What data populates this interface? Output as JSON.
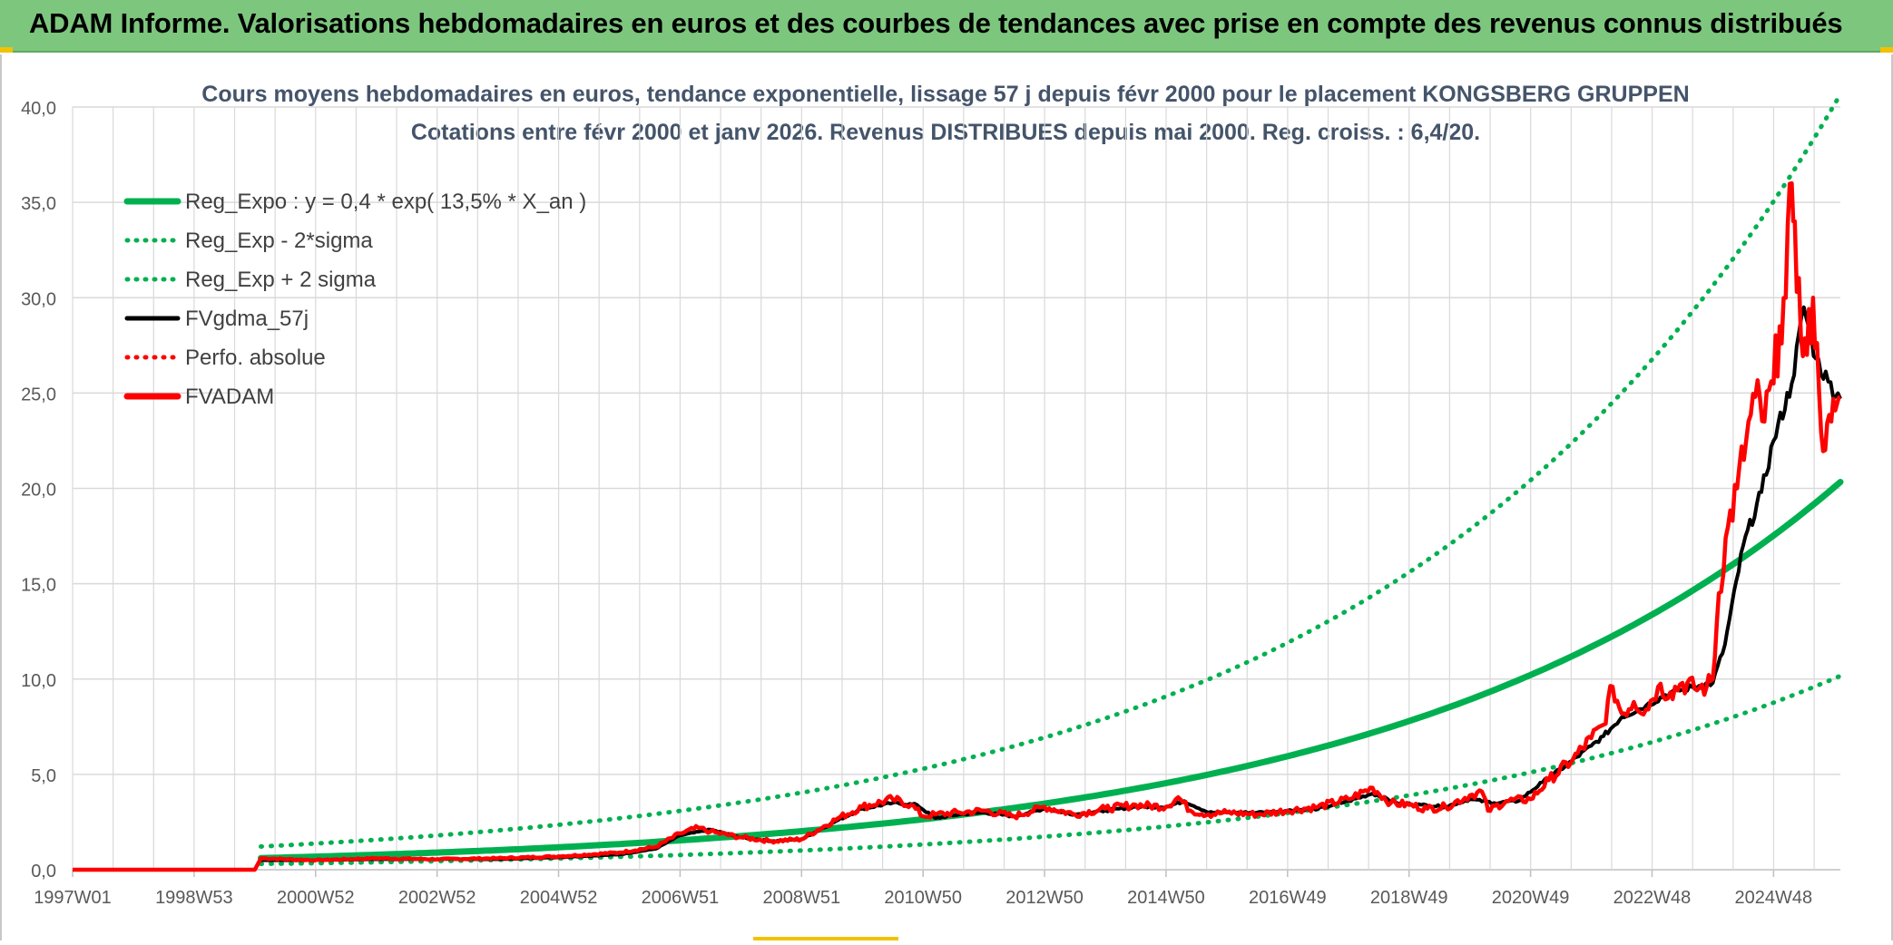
{
  "banner": {
    "title": "ADAM Informe. Valorisations hebdomadaires en euros et des courbes de tendances avec prise en compte des revenus connus distribués"
  },
  "colors": {
    "banner_bg": "#7dc67e",
    "reg_green": "#00b050",
    "fvgdma_black": "#000000",
    "fvadam_red": "#ff0000",
    "grid": "#d9d9d9",
    "corner_accent": "#f2c200"
  },
  "chart_data": {
    "type": "line",
    "title": "Cours moyens hebdomadaires en euros, tendance exponentielle, lissage 57 j depuis févr 2000 pour le placement KONGSBERG GRUPPEN",
    "subtitle": "Cotations entre févr 2000 et janv 2026. Revenus DISTRIBUES depuis mai 2000. Reg. croiss. : 6,4/20.",
    "xlabel": "",
    "ylabel": "",
    "ylim": [
      0,
      40
    ],
    "xlim": [
      1997.0,
      2026.1
    ],
    "y_ticks": [
      "0,0",
      "5,0",
      "10,0",
      "15,0",
      "20,0",
      "25,0",
      "30,0",
      "35,0",
      "40,0"
    ],
    "x_ticks": [
      {
        "label": "1997W01",
        "x": 1997.0
      },
      {
        "label": "1998W53",
        "x": 1999.0
      },
      {
        "label": "2000W52",
        "x": 2001.0
      },
      {
        "label": "2002W52",
        "x": 2003.0
      },
      {
        "label": "2004W52",
        "x": 2005.0
      },
      {
        "label": "2006W51",
        "x": 2007.0
      },
      {
        "label": "2008W51",
        "x": 2009.0
      },
      {
        "label": "2010W50",
        "x": 2011.0
      },
      {
        "label": "2012W50",
        "x": 2013.0
      },
      {
        "label": "2014W50",
        "x": 2015.0
      },
      {
        "label": "2016W49",
        "x": 2017.0
      },
      {
        "label": "2018W49",
        "x": 2019.0
      },
      {
        "label": "2020W49",
        "x": 2021.0
      },
      {
        "label": "2022W48",
        "x": 2023.0
      },
      {
        "label": "2024W48",
        "x": 2025.0
      }
    ],
    "grid": true,
    "legend_position": "top-left",
    "regression": {
      "a": 0.4,
      "rate": 0.135,
      "x0": 2000.1,
      "x_end": 2026.1,
      "sigma_factor_low": 0.5,
      "sigma_factor_high": 2.0
    },
    "series": [
      {
        "name": "Reg_Expo : y = 0,4 * exp( 13,5% *  X_an )",
        "color": "#00b050",
        "style": "solid-thick"
      },
      {
        "name": "Reg_Exp - 2*sigma",
        "color": "#00b050",
        "style": "dotted"
      },
      {
        "name": "Reg_Exp + 2 sigma",
        "color": "#00b050",
        "style": "dotted"
      },
      {
        "name": "FVgdma_57j",
        "color": "#000000",
        "style": "solid",
        "x": [
          2000.1,
          2001.0,
          2002.0,
          2003.0,
          2004.0,
          2005.0,
          2006.0,
          2006.6,
          2007.0,
          2007.5,
          2008.0,
          2008.5,
          2009.0,
          2009.6,
          2010.0,
          2010.5,
          2010.9,
          2011.2,
          2011.6,
          2012.0,
          2012.5,
          2013.0,
          2013.5,
          2014.0,
          2014.5,
          2015.0,
          2015.3,
          2015.7,
          2016.0,
          2016.5,
          2017.0,
          2017.5,
          2018.0,
          2018.4,
          2018.8,
          2019.2,
          2019.6,
          2020.0,
          2020.4,
          2020.8,
          2021.2,
          2021.6,
          2022.0,
          2022.2,
          2022.5,
          2022.9,
          2023.3,
          2023.7,
          2024.0,
          2024.2,
          2024.5,
          2024.8,
          2025.0,
          2025.3,
          2025.5,
          2025.7,
          2025.9,
          2026.1
        ],
        "values": [
          0.5,
          0.5,
          0.55,
          0.55,
          0.55,
          0.65,
          0.8,
          1.1,
          1.8,
          2.1,
          1.7,
          1.5,
          1.6,
          2.6,
          3.2,
          3.5,
          3.4,
          2.7,
          2.9,
          3.0,
          2.8,
          3.2,
          2.9,
          3.1,
          3.3,
          3.3,
          3.6,
          3.0,
          3.0,
          3.0,
          3.1,
          3.2,
          3.6,
          4.0,
          3.5,
          3.4,
          3.3,
          3.7,
          3.5,
          3.6,
          4.6,
          5.5,
          6.5,
          7.0,
          8.0,
          8.6,
          9.3,
          9.6,
          9.8,
          11.8,
          17.0,
          19.8,
          22.5,
          25.5,
          29.5,
          26.8,
          25.6,
          24.7
        ]
      },
      {
        "name": "Perfo. absolue",
        "color": "#ff0000",
        "style": "dotted"
      },
      {
        "name": "FVADAM",
        "color": "#ff0000",
        "style": "solid-thick",
        "x": [
          1997.0,
          2000.0,
          2000.1,
          2001.0,
          2002.0,
          2003.0,
          2004.0,
          2005.0,
          2006.0,
          2006.6,
          2007.0,
          2007.3,
          2007.5,
          2008.0,
          2008.5,
          2009.0,
          2009.6,
          2010.0,
          2010.5,
          2010.8,
          2011.0,
          2011.2,
          2011.6,
          2012.0,
          2012.5,
          2013.0,
          2013.5,
          2014.0,
          2014.5,
          2015.0,
          2015.2,
          2015.4,
          2015.7,
          2016.0,
          2016.5,
          2017.0,
          2017.5,
          2018.0,
          2018.4,
          2018.7,
          2019.0,
          2019.3,
          2019.6,
          2020.0,
          2020.2,
          2020.3,
          2020.6,
          2021.0,
          2021.3,
          2021.7,
          2022.0,
          2022.2,
          2022.35,
          2022.5,
          2022.7,
          2022.9,
          2023.1,
          2023.3,
          2023.5,
          2023.7,
          2023.9,
          2024.0,
          2024.1,
          2024.25,
          2024.4,
          2024.55,
          2024.7,
          2024.85,
          2025.0,
          2025.1,
          2025.2,
          2025.3,
          2025.35,
          2025.45,
          2025.55,
          2025.65,
          2025.75,
          2025.85,
          2025.95,
          2026.05,
          2026.1
        ],
        "values": [
          0.0,
          0.0,
          0.6,
          0.5,
          0.6,
          0.55,
          0.6,
          0.7,
          0.9,
          1.2,
          1.9,
          2.2,
          2.0,
          1.7,
          1.5,
          1.6,
          2.7,
          3.3,
          3.7,
          3.4,
          2.8,
          2.9,
          3.0,
          3.1,
          2.8,
          3.3,
          2.9,
          3.2,
          3.4,
          3.3,
          3.8,
          3.1,
          2.9,
          3.0,
          2.9,
          3.1,
          3.3,
          3.7,
          4.3,
          3.5,
          3.4,
          3.2,
          3.3,
          3.9,
          4.1,
          3.1,
          3.6,
          3.7,
          4.7,
          5.8,
          6.9,
          7.6,
          9.6,
          8.2,
          8.8,
          8.4,
          9.6,
          9.3,
          9.8,
          9.5,
          9.6,
          10.0,
          14.5,
          18.0,
          20.0,
          22.5,
          24.8,
          23.5,
          25.5,
          28.5,
          30.0,
          36.0,
          34.0,
          28.0,
          27.0,
          30.0,
          25.0,
          22.0,
          23.5,
          24.5,
          24.8
        ]
      }
    ]
  }
}
